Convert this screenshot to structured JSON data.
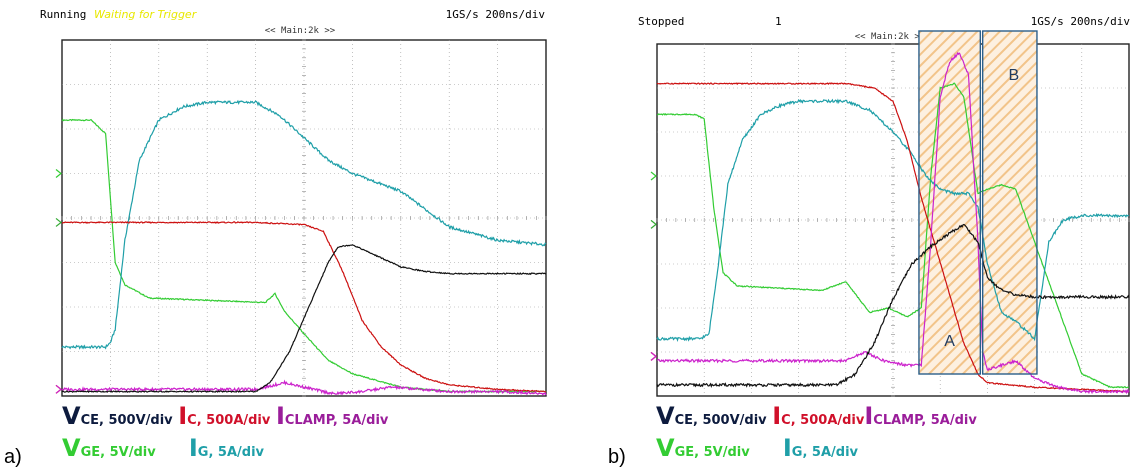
{
  "panels": [
    {
      "label": "a)",
      "status": "Running",
      "status_note": "Waiting for Trigger",
      "trigger_num": "",
      "main_label": "<< Main:2k >>",
      "rate": "1GS/s 200ns/div"
    },
    {
      "label": "b)",
      "status": "Stopped",
      "status_note": "",
      "trigger_num": "1",
      "main_label": "<< Main:2k >>",
      "rate": "1GS/s 200ns/div",
      "regions": [
        "A",
        "B"
      ]
    }
  ],
  "legend": {
    "vce": {
      "sym": "V",
      "sub": "CE, 500V/div",
      "color": "#0d1b3e"
    },
    "ic": {
      "sym": "I",
      "sub": "C, 500A/div",
      "color": "#d0102a"
    },
    "iclamp": {
      "sym": "I",
      "sub": "CLAMP, 5A/div",
      "color": "#9a1d9a"
    },
    "vge": {
      "sym": "V",
      "sub": "GE, 5V/div",
      "color": "#33cc33"
    },
    "ig": {
      "sym": "I",
      "sub": "G, 5A/div",
      "color": "#1f9fa8"
    }
  },
  "chart_data": [
    {
      "type": "line",
      "title": "",
      "xlabel": "",
      "ylabel": "",
      "xlim": [
        0,
        10
      ],
      "ylim": [
        -4,
        4
      ],
      "grid": true,
      "series": [
        {
          "key": "vge",
          "color": "#33cc33",
          "x": [
            0,
            0.6,
            0.9,
            1.1,
            1.3,
            1.8,
            4.2,
            4.4,
            4.6,
            5.0,
            5.5,
            6.0,
            7.0,
            8.0,
            9.0,
            10.0
          ],
          "y": [
            2.2,
            2.2,
            1.9,
            -1.0,
            -1.5,
            -1.8,
            -1.9,
            -1.7,
            -2.1,
            -2.6,
            -3.2,
            -3.5,
            -3.8,
            -3.9,
            -3.9,
            -3.9
          ]
        },
        {
          "key": "ig",
          "color": "#1f9fa8",
          "x": [
            0,
            0.9,
            1.0,
            1.1,
            1.3,
            1.6,
            2.0,
            2.5,
            3.0,
            3.5,
            4.0,
            4.5,
            5.0,
            5.5,
            6.0,
            7.0,
            8.0,
            9.0,
            10.0
          ],
          "y": [
            -2.9,
            -2.9,
            -2.8,
            -2.5,
            -0.5,
            1.3,
            2.2,
            2.5,
            2.6,
            2.6,
            2.6,
            2.3,
            1.8,
            1.3,
            1.0,
            0.6,
            -0.2,
            -0.5,
            -0.6
          ],
          "dense": true
        },
        {
          "key": "ic",
          "color": "#cc1010",
          "x": [
            0,
            1.0,
            2.0,
            3.0,
            4.0,
            5.0,
            5.4,
            5.8,
            6.2,
            6.6,
            7.0,
            7.5,
            8.0,
            9.0,
            10.0
          ],
          "y": [
            -0.1,
            -0.1,
            -0.1,
            -0.1,
            -0.1,
            -0.15,
            -0.3,
            -1.2,
            -2.3,
            -2.9,
            -3.3,
            -3.6,
            -3.75,
            -3.85,
            -3.9
          ]
        },
        {
          "key": "iclamp",
          "color": "#cc22cc",
          "x": [
            0,
            2.0,
            3.0,
            4.0,
            4.6,
            5.0,
            5.6,
            6.2,
            6.8,
            7.4,
            8.0,
            9.0,
            10.0
          ],
          "y": [
            -3.85,
            -3.85,
            -3.85,
            -3.85,
            -3.7,
            -3.8,
            -3.95,
            -3.9,
            -3.8,
            -3.85,
            -3.9,
            -3.9,
            -3.95
          ],
          "dense": true
        },
        {
          "key": "vce",
          "color": "#111111",
          "x": [
            0,
            2.0,
            3.0,
            4.0,
            4.3,
            4.7,
            5.1,
            5.5,
            5.7,
            6.0,
            6.4,
            7.0,
            7.5,
            8.0,
            9.0,
            10.0
          ],
          "y": [
            -3.9,
            -3.9,
            -3.9,
            -3.9,
            -3.7,
            -3.0,
            -2.0,
            -1.0,
            -0.65,
            -0.6,
            -0.8,
            -1.1,
            -1.2,
            -1.25,
            -1.25,
            -1.25
          ]
        }
      ]
    },
    {
      "type": "line",
      "title": "",
      "xlabel": "",
      "ylabel": "",
      "xlim": [
        0,
        10
      ],
      "ylim": [
        -4,
        4
      ],
      "grid": true,
      "series": [
        {
          "key": "vge",
          "color": "#33cc33",
          "x": [
            0,
            0.8,
            1.0,
            1.2,
            1.4,
            1.7,
            3.5,
            4.0,
            4.5,
            4.9,
            5.3,
            5.6,
            5.8,
            6.0,
            6.3,
            6.5,
            6.8,
            7.0,
            7.3,
            7.6,
            8.0,
            9.0,
            9.6,
            10.0
          ],
          "y": [
            2.4,
            2.4,
            2.3,
            0.3,
            -1.2,
            -1.5,
            -1.6,
            -1.4,
            -2.1,
            -2.0,
            -2.2,
            -2.0,
            1.0,
            3.0,
            3.1,
            2.8,
            0.6,
            0.7,
            0.8,
            0.7,
            -0.5,
            -3.5,
            -3.8,
            -3.8
          ]
        },
        {
          "key": "ig",
          "color": "#1f9fa8",
          "x": [
            0,
            0.9,
            1.1,
            1.3,
            1.5,
            1.8,
            2.2,
            2.6,
            3.0,
            3.5,
            4.0,
            4.5,
            5.0,
            5.4,
            5.7,
            6.0,
            6.3,
            6.6,
            6.8,
            7.0,
            7.3,
            7.6,
            8.0,
            8.3,
            8.6,
            9.0,
            9.5,
            10.0
          ],
          "y": [
            -2.7,
            -2.7,
            -2.6,
            -1.0,
            0.8,
            1.8,
            2.4,
            2.6,
            2.7,
            2.7,
            2.7,
            2.5,
            2.0,
            1.5,
            1.0,
            0.7,
            0.6,
            0.6,
            0.3,
            -1.0,
            -2.1,
            -2.3,
            -2.7,
            -0.5,
            0.0,
            0.1,
            0.1,
            0.1
          ],
          "dense": true
        },
        {
          "key": "ic",
          "color": "#cc1010",
          "x": [
            0,
            1.0,
            2.0,
            3.0,
            4.0,
            4.6,
            5.0,
            5.3,
            5.6,
            5.9,
            6.2,
            6.5,
            6.8,
            7.0,
            7.5,
            8.0,
            9.0,
            10.0
          ],
          "y": [
            3.1,
            3.1,
            3.1,
            3.1,
            3.1,
            3.0,
            2.7,
            1.8,
            0.5,
            -0.6,
            -1.7,
            -2.8,
            -3.5,
            -3.7,
            -3.75,
            -3.8,
            -3.85,
            -3.9
          ]
        },
        {
          "key": "iclamp",
          "color": "#cc22cc",
          "x": [
            0,
            2.0,
            3.0,
            4.0,
            4.4,
            4.8,
            5.3,
            5.6,
            5.8,
            6.0,
            6.2,
            6.4,
            6.6,
            6.8,
            6.9,
            7.0,
            7.3,
            7.6,
            8.0,
            8.5,
            9.0,
            10.0
          ],
          "y": [
            -3.2,
            -3.2,
            -3.2,
            -3.2,
            -3.0,
            -3.2,
            -3.3,
            -3.3,
            -0.5,
            2.8,
            3.6,
            3.8,
            3.3,
            -0.5,
            -3.0,
            -3.4,
            -3.3,
            -3.2,
            -3.6,
            -3.8,
            -3.9,
            -3.9
          ],
          "dense": true
        },
        {
          "key": "vce",
          "color": "#111111",
          "x": [
            0,
            2.0,
            3.0,
            3.8,
            4.2,
            4.6,
            5.0,
            5.4,
            5.8,
            6.2,
            6.5,
            6.8,
            7.0,
            7.3,
            7.6,
            8.0,
            9.0,
            10.0
          ],
          "y": [
            -3.75,
            -3.75,
            -3.75,
            -3.75,
            -3.5,
            -2.8,
            -1.8,
            -1.0,
            -0.6,
            -0.3,
            -0.1,
            -0.5,
            -1.3,
            -1.6,
            -1.7,
            -1.75,
            -1.75,
            -1.75
          ],
          "dense": true
        }
      ]
    }
  ]
}
